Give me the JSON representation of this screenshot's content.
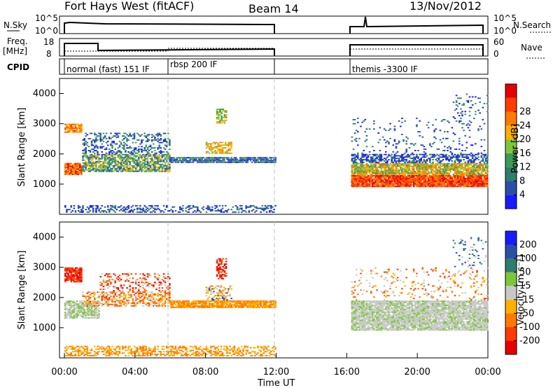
{
  "header": {
    "radar": "Fort Hays West (fitACF)",
    "beam": "Beam 14",
    "date": "13/Nov/2012"
  },
  "panel_labels": {
    "nsky": "N.Sky",
    "nsky_ticks": [
      "10^5",
      "10^0"
    ],
    "nsearch": "N.Search",
    "freq": "Freq.",
    "freq_unit": "[MHz]",
    "freq_ticks": [
      "18",
      "8"
    ],
    "nave": "Nave",
    "nave_ticks": [
      "60",
      "0"
    ],
    "cpid": "CPID"
  },
  "cpid_segments": [
    {
      "label": "normal (fast) 151 IF",
      "start_hour": 0,
      "end_hour": 6
    },
    {
      "label": "rbsp 200 IF",
      "start_hour": 6,
      "end_hour": 12
    },
    {
      "label": "themis -3300 IF",
      "start_hour": 16.25,
      "end_hour": 24
    }
  ],
  "colors": {
    "power_scale": [
      "#1a1aff",
      "#2a4fa6",
      "#2e7d6e",
      "#3d9a55",
      "#7dc63a",
      "#ffb000",
      "#ff7a00",
      "#ff3b00",
      "#e60000"
    ],
    "velocity_scale": [
      "#e60000",
      "#ff3b00",
      "#ff7a00",
      "#ffb000",
      "#c8c8c8",
      "#7dc63a",
      "#2e7d6e",
      "#2a4fa6",
      "#1a1aff"
    ],
    "grid_dash": "#c0c0c0"
  },
  "chart_data": [
    {
      "type": "heatmap",
      "name": "power",
      "ylabel": "Slant Range [km]",
      "yticks": [
        "1000",
        "2000",
        "3000",
        "4000"
      ],
      "ylim": [
        0,
        4500
      ],
      "xlim_hours": [
        0,
        24
      ],
      "colorbar": {
        "label": "Power [dB]",
        "ticks": [
          "4",
          "8",
          "12",
          "16",
          "20",
          "24",
          "28"
        ]
      },
      "data_gap_hours": [
        12,
        16.25
      ]
    },
    {
      "type": "heatmap",
      "name": "velocity",
      "ylabel": "Slant Range [km]",
      "yticks": [
        "1000",
        "2000",
        "3000",
        "4000"
      ],
      "ylim": [
        0,
        4500
      ],
      "xlim_hours": [
        0,
        24
      ],
      "colorbar": {
        "label": "Velocity [m s⁻¹]",
        "ticks": [
          "-200",
          "-100",
          "-50",
          "-15",
          "15",
          "50",
          "100",
          "200"
        ]
      },
      "xticks": [
        "00:00",
        "04:00",
        "08:00",
        "12:00",
        "16:00",
        "20:00",
        "00:00"
      ],
      "xlabel": "Time UT",
      "data_gap_hours": [
        12,
        16.25
      ]
    }
  ]
}
